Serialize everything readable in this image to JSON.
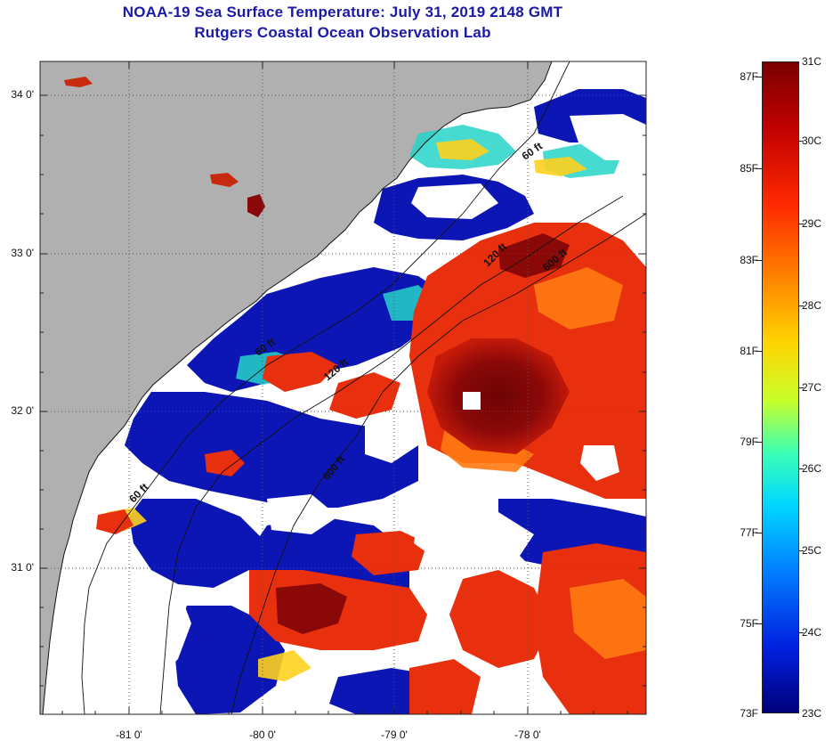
{
  "header": {
    "title": "NOAA-19 Sea Surface Temperature:  July 31, 2019 2148 GMT",
    "subtitle": "Rutgers Coastal Ocean Observation Lab"
  },
  "map": {
    "lat_labels": [
      "34 0'",
      "33 0'",
      "32 0'",
      "31 0'"
    ],
    "lon_labels": [
      "-81 0'",
      "-80 0'",
      "-79 0'",
      "-78 0'"
    ],
    "isobath_labels": [
      "60 ft",
      "120 ft",
      "600 ft",
      "60 ft",
      "120 ft",
      "600 ft",
      "60 ft"
    ],
    "colors": {
      "land": "#b0b0b0",
      "cloud": "#ffffff",
      "cold": "#0b16b4",
      "warm": "#c81e0c",
      "hot": "#7a0606"
    }
  },
  "colorbar": {
    "fahrenheit_labels": [
      "87F",
      "85F",
      "83F",
      "81F",
      "79F",
      "77F",
      "75F",
      "73F"
    ],
    "celsius_labels": [
      "31C",
      "30C",
      "29C",
      "28C",
      "27C",
      "26C",
      "25C",
      "24C",
      "23C"
    ],
    "gradient_colors": [
      "#7a0000",
      "#c00000",
      "#ff2a00",
      "#ff7a00",
      "#ffd400",
      "#c8ff2a",
      "#3cffb4",
      "#00d8ff",
      "#0080ff",
      "#0020e0",
      "#00007a"
    ]
  }
}
